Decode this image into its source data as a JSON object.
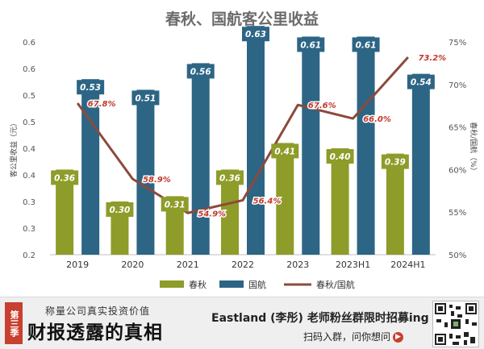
{
  "chart_data": {
    "type": "bar",
    "title": "春秋、国航客公里收益",
    "categories": [
      "2019",
      "2020",
      "2021",
      "2022",
      "2023",
      "2023H1",
      "2024H1"
    ],
    "series": [
      {
        "name": "春秋",
        "kind": "bar",
        "axis": "left",
        "color": "#8e9c2a",
        "values": [
          0.36,
          0.3,
          0.31,
          0.36,
          0.41,
          0.4,
          0.39
        ]
      },
      {
        "name": "国航",
        "kind": "bar",
        "axis": "left",
        "color": "#2d6585",
        "values": [
          0.53,
          0.51,
          0.56,
          0.63,
          0.61,
          0.61,
          0.54
        ]
      },
      {
        "name": "春秋/国航",
        "kind": "line",
        "axis": "right",
        "color": "#8b4a3c",
        "values": [
          67.8,
          58.9,
          54.9,
          56.4,
          67.6,
          66.0,
          73.2
        ]
      }
    ],
    "labels": {
      "春秋": [
        "0.36",
        "0.30",
        "0.31",
        "0.36",
        "0.41",
        "0.40",
        "0.39"
      ],
      "国航": [
        "0.53",
        "0.51",
        "0.56",
        "0.63",
        "0.61",
        "0.61",
        "0.54"
      ],
      "春秋/国航": [
        "67.8%",
        "58.9%",
        "54.9%",
        "56.4%",
        "67.6%",
        "66.0%",
        "73.2%"
      ]
    },
    "ylabel": "客公里收益（元）",
    "ylabel_right": "春秋/国航（%）",
    "ylim": [
      0.2,
      0.6
    ],
    "yticks": [
      "0.6",
      "0.6",
      "0.5",
      "0.5",
      "0.4",
      "0.4",
      "0.3",
      "0.3",
      "0.2"
    ],
    "ylim_right": [
      50,
      75
    ],
    "yticks_right": [
      "75%",
      "70%",
      "65%",
      "60%",
      "55%",
      "50%"
    ],
    "legend": [
      "春秋",
      "国航",
      "春秋/国航"
    ],
    "legend_position": "bottom",
    "grid": false
  },
  "banner": {
    "season_badge": "第三季",
    "series_subtitle": "称量公司真实投资价值",
    "series_title": "财报透露的真相",
    "promo_line": "Eastland (李彤) 老师粉丝群限时招募ing",
    "promo_action": "扫码入群，问你想问",
    "arrow_icon": "right-arrow-icon",
    "qr_icon": "qr-code-icon"
  }
}
